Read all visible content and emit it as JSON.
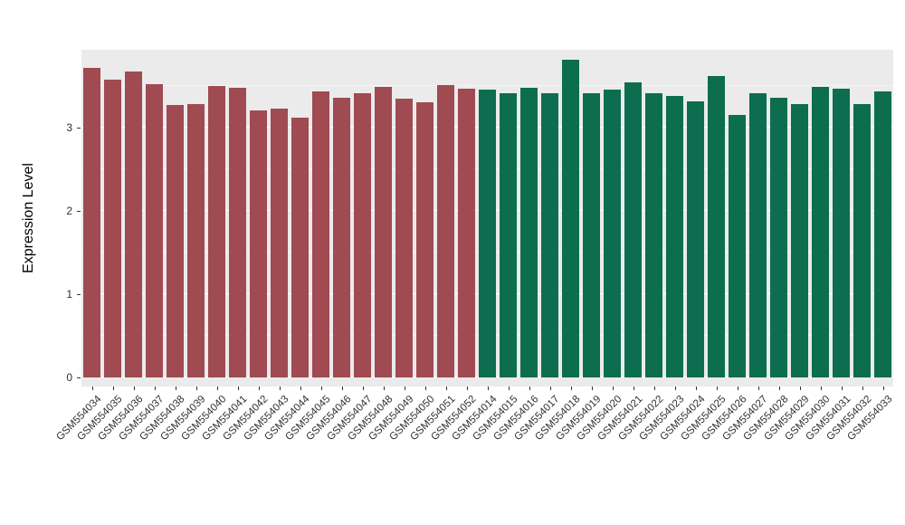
{
  "chart_data": {
    "type": "bar",
    "title": "",
    "xlabel": "",
    "ylabel": "Expression Level",
    "ylim": [
      0,
      3.85
    ],
    "yticks": [
      0,
      1,
      2,
      3
    ],
    "yminor": [
      0.5,
      1.5,
      2.5,
      3.5
    ],
    "grid": "white major and minor horizontal lines on grey panel",
    "legend": "none",
    "panel_bg": "#EBEBEB",
    "group_colors": {
      "groupA": "#A04A52",
      "groupB": "#0C6E4E"
    },
    "categories": [
      "GSM554034",
      "GSM554035",
      "GSM554036",
      "GSM554037",
      "GSM554038",
      "GSM554039",
      "GSM554040",
      "GSM554041",
      "GSM554042",
      "GSM554043",
      "GSM554044",
      "GSM554045",
      "GSM554046",
      "GSM554047",
      "GSM554048",
      "GSM554049",
      "GSM554050",
      "GSM554051",
      "GSM554052",
      "GSM554014",
      "GSM554015",
      "GSM554016",
      "GSM554017",
      "GSM554018",
      "GSM554019",
      "GSM554020",
      "GSM554021",
      "GSM554022",
      "GSM554023",
      "GSM554024",
      "GSM554025",
      "GSM554026",
      "GSM554027",
      "GSM554028",
      "GSM554029",
      "GSM554030",
      "GSM554031",
      "GSM554032",
      "GSM554033"
    ],
    "values": [
      3.72,
      3.58,
      3.68,
      3.52,
      3.27,
      3.28,
      3.5,
      3.48,
      3.21,
      3.23,
      3.12,
      3.44,
      3.36,
      3.42,
      3.49,
      3.35,
      3.31,
      3.51,
      3.47,
      3.46,
      3.42,
      3.48,
      3.42,
      3.82,
      3.42,
      3.46,
      3.55,
      3.42,
      3.38,
      3.32,
      3.62,
      3.15,
      3.41,
      3.36,
      3.29,
      3.49,
      3.47,
      3.28,
      3.44
    ],
    "bar_group": [
      "groupA",
      "groupA",
      "groupA",
      "groupA",
      "groupA",
      "groupA",
      "groupA",
      "groupA",
      "groupA",
      "groupA",
      "groupA",
      "groupA",
      "groupA",
      "groupA",
      "groupA",
      "groupA",
      "groupA",
      "groupA",
      "groupA",
      "groupB",
      "groupB",
      "groupB",
      "groupB",
      "groupB",
      "groupB",
      "groupB",
      "groupB",
      "groupB",
      "groupB",
      "groupB",
      "groupB",
      "groupB",
      "groupB",
      "groupB",
      "groupB",
      "groupB",
      "groupB",
      "groupB",
      "groupB"
    ]
  }
}
